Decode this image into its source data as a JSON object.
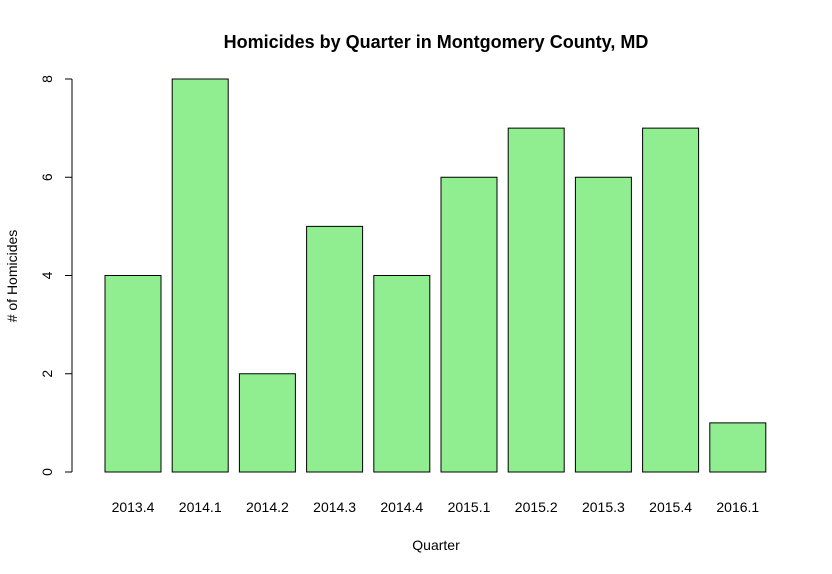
{
  "chart_data": {
    "type": "bar",
    "title": "Homicides by Quarter in Montgomery County, MD",
    "xlabel": "Quarter",
    "ylabel": "# of Homicides",
    "categories": [
      "2013.4",
      "2014.1",
      "2014.2",
      "2014.3",
      "2014.4",
      "2015.1",
      "2015.2",
      "2015.3",
      "2015.4",
      "2016.1"
    ],
    "values": [
      4,
      8,
      2,
      5,
      4,
      6,
      7,
      6,
      7,
      1
    ],
    "ylim": [
      0,
      8
    ],
    "yticks": [
      "0",
      "2",
      "4",
      "6",
      "8"
    ],
    "bar_color": "#90ee90",
    "bar_border_color": "#000000",
    "grid": false,
    "legend": "none"
  }
}
